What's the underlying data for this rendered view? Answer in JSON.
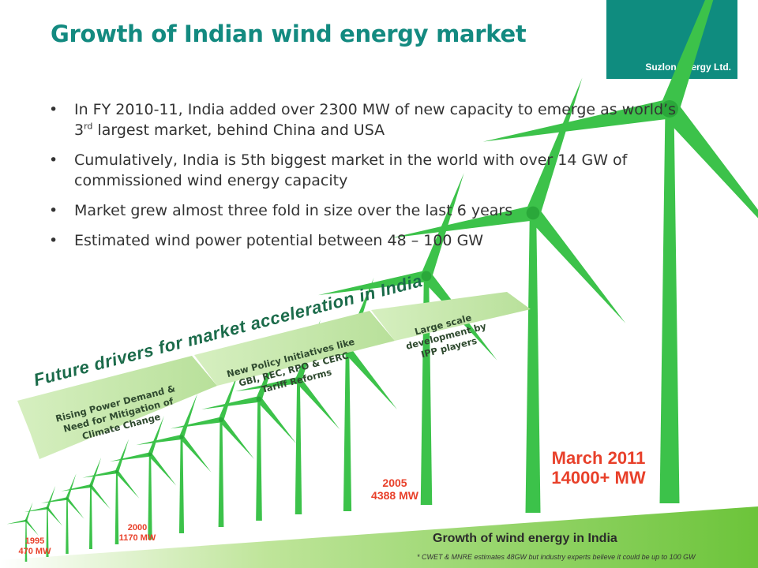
{
  "header": {
    "title": "Growth of Indian wind energy market",
    "company": "Suzlon Energy Ltd."
  },
  "bullets": {
    "b1_pre": "In FY 2010-11, India added over 2300 MW of new capacity to emerge as world’s 3",
    "b1_sup": "rd",
    "b1_post": " largest market, behind China and USA",
    "b2": "Cumulatively, India is 5th biggest market in the world with over 14 GW of commissioned wind energy capacity",
    "b3": "Market grew almost three fold in size over the last 6 years",
    "b4": "Estimated wind power potential between 48 – 100 GW"
  },
  "drivers": {
    "title": "Future drivers for market acceleration in India",
    "arrow1": "Rising Power Demand & Need for Mitigation of Climate Change",
    "arrow2": "New Policy Initiatives like GBI, REC, RPO & CERC Tariff Reforms",
    "arrow3": "Large scale development by IPP players"
  },
  "milestones": {
    "m1995_year": "1995",
    "m1995_value": "470 MW",
    "m2000_year": "2000",
    "m2000_value": "1170  MW",
    "m2005_year": "2005",
    "m2005_value": "4388 MW",
    "m2011_year": "March 2011",
    "m2011_value": "14000+ MW"
  },
  "footer": {
    "caption": "Growth of wind energy in India",
    "note": "* CWET & MNRE estimates 48GW but industry experts believe it could be up to 100 GW"
  },
  "colors": {
    "title": "#138a80",
    "brand_box": "#0f8c7f",
    "turbine": "#3cc24a",
    "arrow_fill": "#c9e8b0",
    "milestone": "#e8402a",
    "ground": "#7fce3f"
  }
}
